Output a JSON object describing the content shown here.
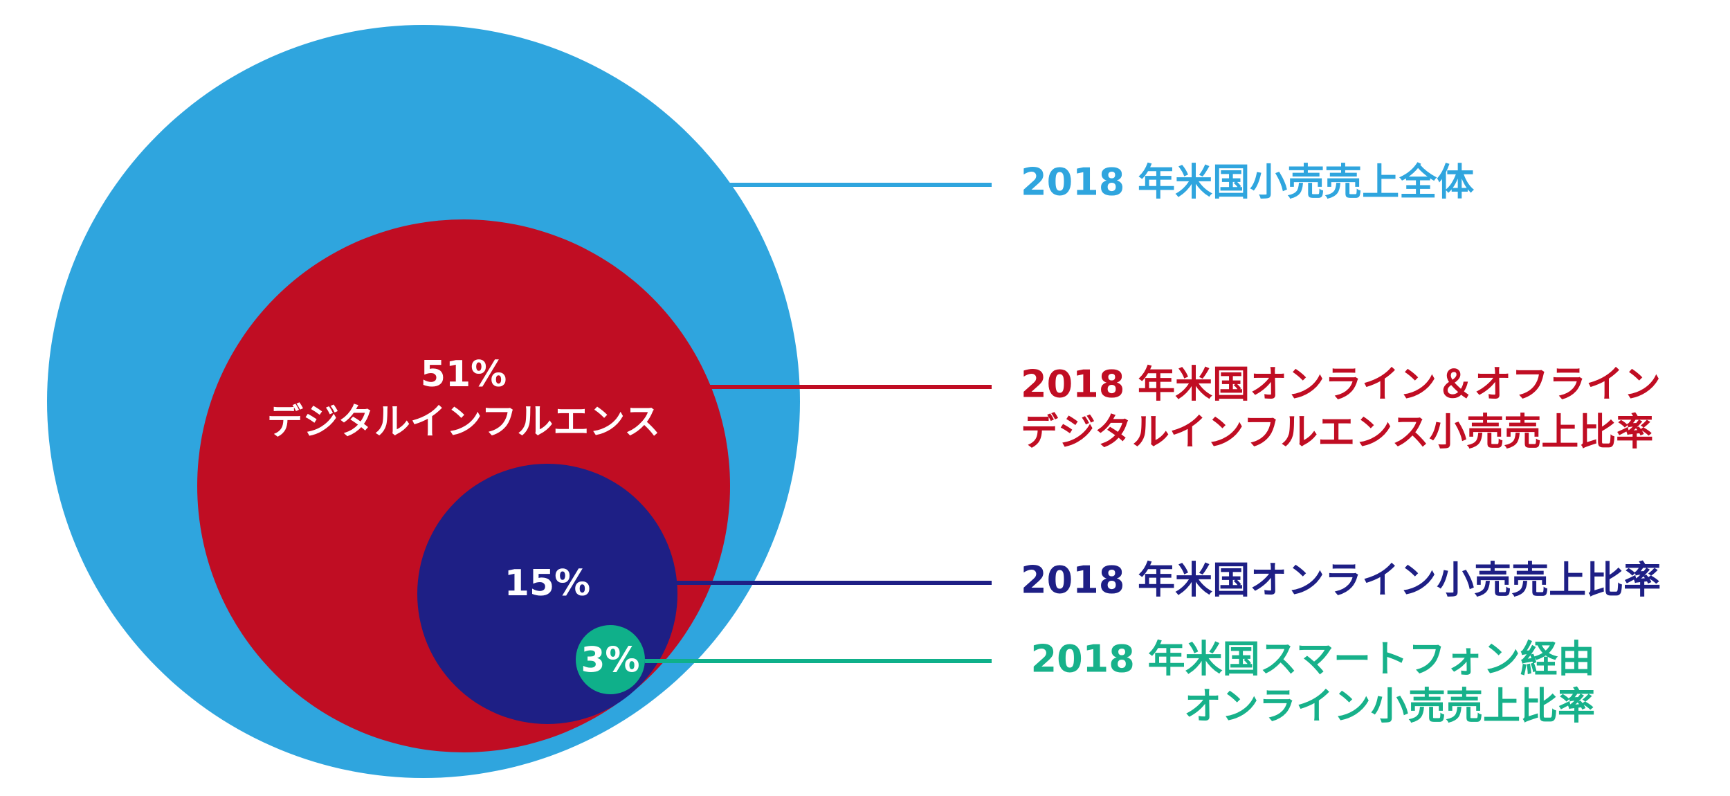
{
  "circles": [
    {
      "label": [
        "2018 年米国小売売上全体"
      ]
    },
    {
      "value_label": "51%",
      "inner_label": "デジタルインフルエンス",
      "label": [
        "2018 年米国オンライン＆オフライン",
        "デジタルインフルエンス小売売上比率"
      ]
    },
    {
      "value_label": "15%",
      "label": [
        "2018 年米国オンライン小売売上比率"
      ]
    },
    {
      "value_label": "3%",
      "label": [
        "2018 年米国スマートフォン経由",
        "オンライン小売売上比率"
      ]
    }
  ]
}
